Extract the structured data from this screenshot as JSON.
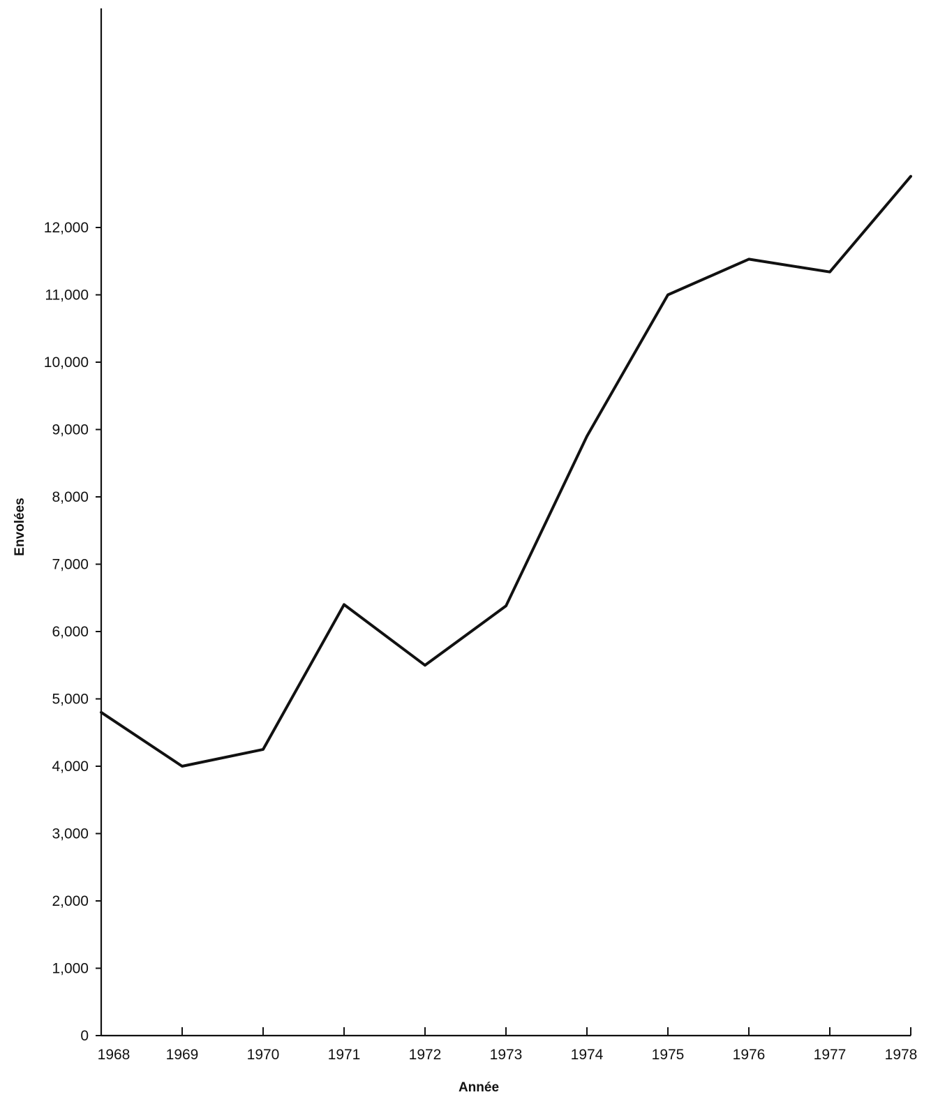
{
  "chart_data": {
    "type": "line",
    "title": "",
    "xlabel": "Année",
    "ylabel": "Envolées",
    "categories": [
      "1968",
      "1969",
      "1970",
      "1971",
      "1972",
      "1973",
      "1974",
      "1975",
      "1976",
      "1977",
      "1978"
    ],
    "series": [
      {
        "values": [
          4800,
          4000,
          4250,
          6400,
          5500,
          6380,
          8900,
          11000,
          11530,
          11340,
          12760
        ]
      }
    ],
    "yticks": [
      "0",
      "1,000",
      "2,000",
      "3,000",
      "4,000",
      "5,000",
      "6,000",
      "7,000",
      "8,000",
      "9,000",
      "10,000",
      "11,000",
      "12,000"
    ],
    "ytick_values": [
      0,
      1000,
      2000,
      3000,
      4000,
      5000,
      6000,
      7000,
      8000,
      9000,
      10000,
      11000,
      12000
    ],
    "ylim": [
      0,
      15000
    ],
    "grid": false,
    "legend": "none",
    "line_color": "#111111"
  }
}
